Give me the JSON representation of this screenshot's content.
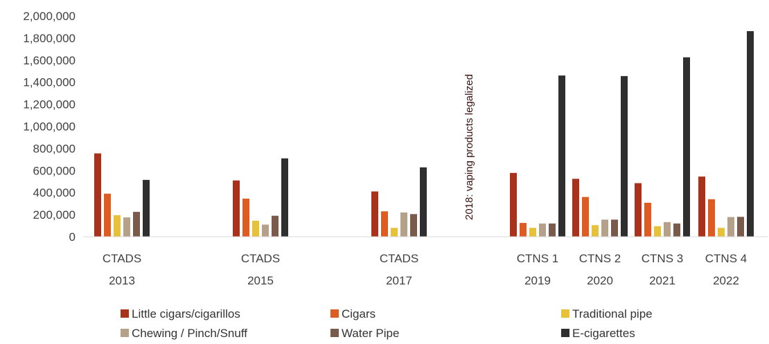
{
  "chart_data": {
    "type": "bar",
    "categories": [
      {
        "line1": "CTADS",
        "line2": "2013"
      },
      {
        "line1": "CTADS",
        "line2": "2015"
      },
      {
        "line1": "CTADS",
        "line2": "2017"
      },
      {
        "line1": "CTNS 1",
        "line2": "2019"
      },
      {
        "line1": "CTNS 2",
        "line2": "2020"
      },
      {
        "line1": "CTNS 3",
        "line2": "2021"
      },
      {
        "line1": "CTNS 4",
        "line2": "2022"
      }
    ],
    "series": [
      {
        "name": "Little cigars/cigarillos",
        "color": "#a8321c",
        "values": [
          755000,
          510000,
          410000,
          578000,
          525000,
          485000,
          545000
        ]
      },
      {
        "name": "Cigars",
        "color": "#de5b21",
        "values": [
          390000,
          345000,
          230000,
          125000,
          360000,
          308000,
          340000
        ]
      },
      {
        "name": "Traditional pipe",
        "color": "#e8c13a",
        "values": [
          195000,
          145000,
          80000,
          80000,
          105000,
          95000,
          80000
        ]
      },
      {
        "name": "Chewing / Pinch/Snuff",
        "color": "#b5a189",
        "values": [
          175000,
          110000,
          220000,
          120000,
          155000,
          132000,
          178000
        ]
      },
      {
        "name": "Water Pipe",
        "color": "#7a5a4b",
        "values": [
          225000,
          190000,
          205000,
          120000,
          155000,
          120000,
          180000
        ]
      },
      {
        "name": "E-cigarettes",
        "color": "#2f2f2f",
        "values": [
          515000,
          710000,
          628000,
          1460000,
          1455000,
          1625000,
          1862000
        ]
      }
    ],
    "ylim": [
      0,
      2000000
    ],
    "yticks": [
      "0",
      "200,000",
      "400,000",
      "600,000",
      "800,000",
      "1,000,000",
      "1,200,000",
      "1,400,000",
      "1,600,000",
      "1,800,000",
      "2,000,000"
    ],
    "annotation": "2018: vaping products legalized",
    "grid": false,
    "legend_position": "bottom"
  }
}
